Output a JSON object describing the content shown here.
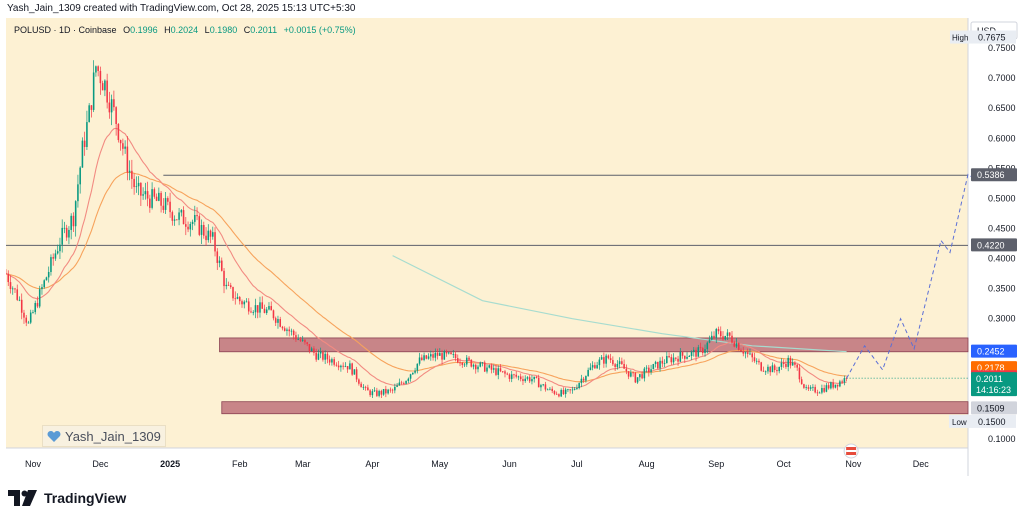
{
  "credit": "Yash_Jain_1309 created with TradingView.com, Oct 28, 2025 15:13 UTC+5:30",
  "legend": {
    "symbol": "POLUSD · 1D · Coinbase",
    "o_label": "O",
    "o": "0.1996",
    "h_label": "H",
    "h": "0.2024",
    "l_label": "L",
    "l": "0.1980",
    "c_label": "C",
    "c": "0.2011",
    "change": "+0.0015 (+0.75%)"
  },
  "watermark": "Yash_Jain_1309",
  "footer_brand": "TradingView",
  "colors": {
    "background": "#fdf1d3",
    "up": "#089981",
    "down": "#f23645",
    "ma_fast": "#f28b82",
    "ma_slow": "#f7a35c",
    "ma_long": "#a7dccf",
    "zone": "#b5606f",
    "level_line": "#5d606b",
    "projection": "#5b6fd6"
  },
  "chart_data": {
    "type": "candlestick",
    "currency_label": "USD",
    "ylim": [
      0.085,
      0.8
    ],
    "y_ticks": [
      "0.8000",
      "0.7500",
      "0.7000",
      "0.6500",
      "0.6000",
      "0.5500",
      "0.5000",
      "0.4500",
      "0.4000",
      "0.3500",
      "0.3000",
      "0.2500",
      "0.2000",
      "0.1500",
      "0.1000"
    ],
    "x_ticks": [
      "Nov",
      "Dec",
      "2025",
      "Feb",
      "Mar",
      "Apr",
      "May",
      "Jun",
      "Jul",
      "Aug",
      "Sep",
      "Oct",
      "Nov",
      "Dec"
    ],
    "x_tick_days": [
      0,
      30,
      61,
      92,
      120,
      151,
      181,
      212,
      242,
      273,
      304,
      334,
      365,
      395
    ],
    "x_range_days": [
      -12,
      416
    ],
    "high": {
      "label": "High",
      "value": "0.7675"
    },
    "low": {
      "label": "Low",
      "value": "0.1500"
    },
    "price_labels": [
      {
        "value": "0.5386",
        "y": 0.5386,
        "kind": "level"
      },
      {
        "value": "0.4220",
        "y": 0.422,
        "kind": "level"
      },
      {
        "value": "0.2452",
        "y": 0.2452,
        "kind": "ma_long"
      },
      {
        "value": "0.2178",
        "y": 0.2178,
        "kind": "ma_slow"
      },
      {
        "value": "0.2026",
        "y": 0.2026,
        "kind": "ma_fast"
      },
      {
        "value": "0.1509",
        "y": 0.1509,
        "kind": "level"
      }
    ],
    "last_price": {
      "value": "0.2011",
      "countdown": "14:16:23",
      "y": 0.2011
    },
    "horizontal_levels": [
      0.5386,
      0.422
    ],
    "zones": [
      {
        "start_day": 83,
        "end_day": 416,
        "low": 0.245,
        "high": 0.268
      },
      {
        "start_day": 84,
        "end_day": 416,
        "low": 0.142,
        "high": 0.162
      }
    ],
    "path_points": [
      [
        -12,
        0.375
      ],
      [
        -6,
        0.33
      ],
      [
        -2,
        0.29
      ],
      [
        5,
        0.36
      ],
      [
        12,
        0.43
      ],
      [
        18,
        0.47
      ],
      [
        22,
        0.58
      ],
      [
        25,
        0.64
      ],
      [
        28,
        0.72
      ],
      [
        32,
        0.69
      ],
      [
        37,
        0.63
      ],
      [
        41,
        0.57
      ],
      [
        46,
        0.51
      ],
      [
        52,
        0.5
      ],
      [
        58,
        0.49
      ],
      [
        64,
        0.47
      ],
      [
        72,
        0.46
      ],
      [
        80,
        0.43
      ],
      [
        86,
        0.35
      ],
      [
        92,
        0.33
      ],
      [
        98,
        0.32
      ],
      [
        106,
        0.31
      ],
      [
        114,
        0.28
      ],
      [
        120,
        0.26
      ],
      [
        126,
        0.24
      ],
      [
        134,
        0.23
      ],
      [
        141,
        0.22
      ],
      [
        148,
        0.18
      ],
      [
        152,
        0.175
      ],
      [
        160,
        0.18
      ],
      [
        166,
        0.2
      ],
      [
        172,
        0.23
      ],
      [
        180,
        0.24
      ],
      [
        188,
        0.235
      ],
      [
        196,
        0.225
      ],
      [
        204,
        0.215
      ],
      [
        212,
        0.205
      ],
      [
        222,
        0.2
      ],
      [
        230,
        0.18
      ],
      [
        236,
        0.175
      ],
      [
        240,
        0.18
      ],
      [
        244,
        0.2
      ],
      [
        250,
        0.225
      ],
      [
        256,
        0.235
      ],
      [
        262,
        0.22
      ],
      [
        268,
        0.2
      ],
      [
        274,
        0.215
      ],
      [
        281,
        0.23
      ],
      [
        290,
        0.24
      ],
      [
        297,
        0.245
      ],
      [
        304,
        0.275
      ],
      [
        310,
        0.27
      ],
      [
        318,
        0.24
      ],
      [
        324,
        0.22
      ],
      [
        330,
        0.215
      ],
      [
        336,
        0.23
      ],
      [
        340,
        0.215
      ],
      [
        344,
        0.18
      ],
      [
        350,
        0.182
      ],
      [
        356,
        0.19
      ],
      [
        362,
        0.2011
      ]
    ],
    "ma_long_points": [
      [
        160,
        0.405
      ],
      [
        200,
        0.33
      ],
      [
        240,
        0.3
      ],
      [
        280,
        0.275
      ],
      [
        320,
        0.255
      ],
      [
        362,
        0.2452
      ]
    ],
    "projection": [
      [
        362,
        0.2011
      ],
      [
        370,
        0.255
      ],
      [
        378,
        0.215
      ],
      [
        386,
        0.3
      ],
      [
        392,
        0.25
      ],
      [
        404,
        0.43
      ],
      [
        408,
        0.41
      ],
      [
        416,
        0.54
      ],
      [
        420,
        0.53
      ]
    ]
  }
}
